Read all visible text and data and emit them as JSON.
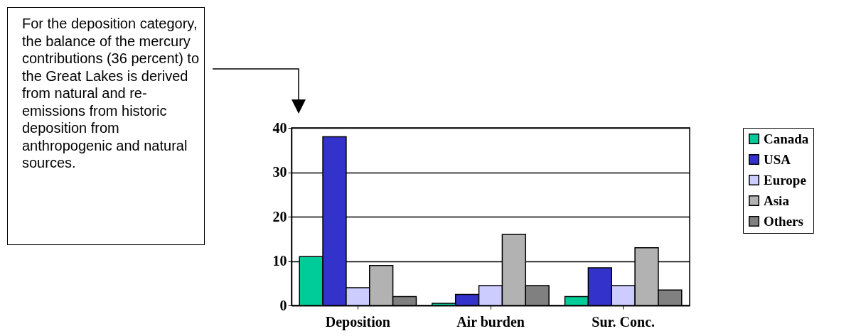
{
  "chart_data": {
    "type": "bar",
    "categories": [
      "Deposition",
      "Air burden",
      "Sur. Conc."
    ],
    "series": [
      {
        "name": "Canada",
        "color": "#00cc99",
        "values": [
          11,
          0.5,
          2
        ]
      },
      {
        "name": "USA",
        "color": "#3333cc",
        "values": [
          38,
          2.5,
          8.5
        ]
      },
      {
        "name": "Europe",
        "color": "#ccccff",
        "values": [
          4,
          4.5,
          4.5
        ]
      },
      {
        "name": "Asia",
        "color": "#b2b2b2",
        "values": [
          9,
          16,
          13
        ]
      },
      {
        "name": "Others",
        "color": "#808080",
        "values": [
          2,
          4.5,
          3.5
        ]
      }
    ],
    "ylim": [
      0,
      40
    ],
    "yticks": [
      0,
      10,
      20,
      30,
      40
    ],
    "grid": "y",
    "legend": "right",
    "annotations": [
      "For the deposition category, the balance of the mercury contributions (36 percent) to the Great Lakes is derived from natural and re-emissions from historic deposition from anthropogenic and natural sources."
    ]
  }
}
